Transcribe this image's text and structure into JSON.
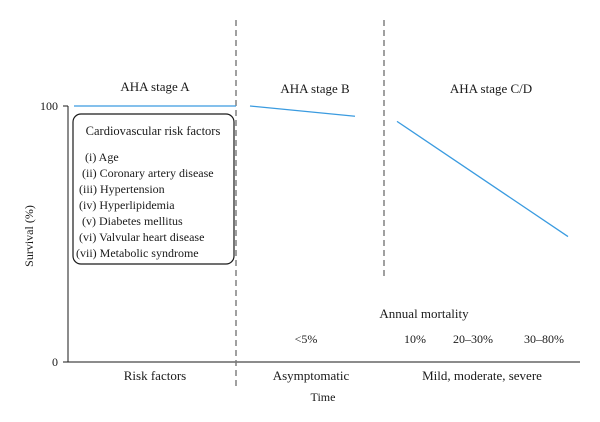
{
  "chart_data": {
    "type": "line",
    "title": "",
    "xlabel": "Time",
    "ylabel": "Survival (%)",
    "ylim": [
      0,
      100
    ],
    "y_ticks": [
      "0",
      "100"
    ],
    "grid": false,
    "stages": [
      {
        "label": "AHA stage A",
        "category": "Risk factors"
      },
      {
        "label": "AHA stage B",
        "category": "Asymptomatic"
      },
      {
        "label": "AHA stage C/D",
        "category": "Mild, moderate, severe"
      }
    ],
    "series": [
      {
        "segment": "AHA stage A",
        "x": [
          0.0,
          1.0
        ],
        "y": [
          100,
          100
        ]
      },
      {
        "segment": "AHA stage B",
        "x": [
          0.0,
          1.0
        ],
        "y": [
          100,
          96
        ]
      },
      {
        "segment": "AHA stage C/D",
        "x": [
          0.0,
          1.0
        ],
        "y": [
          94,
          49
        ]
      }
    ],
    "line_color": "#3a9be0",
    "divider_style": "dashed",
    "risk_box": {
      "title": "Cardiovascular risk factors",
      "items": [
        "(i) Age",
        "(ii) Coronary artery disease",
        "(iii) Hypertension",
        "(iv) Hyperlipidemia",
        "(v) Diabetes mellitus",
        "(vi) Valvular heart disease",
        "(vii) Metabolic syndrome"
      ]
    },
    "annual_mortality": {
      "label": "Annual mortality",
      "stage_b": "<5%",
      "stage_cd": [
        "10%",
        "20–30%",
        "30–80%"
      ]
    }
  }
}
